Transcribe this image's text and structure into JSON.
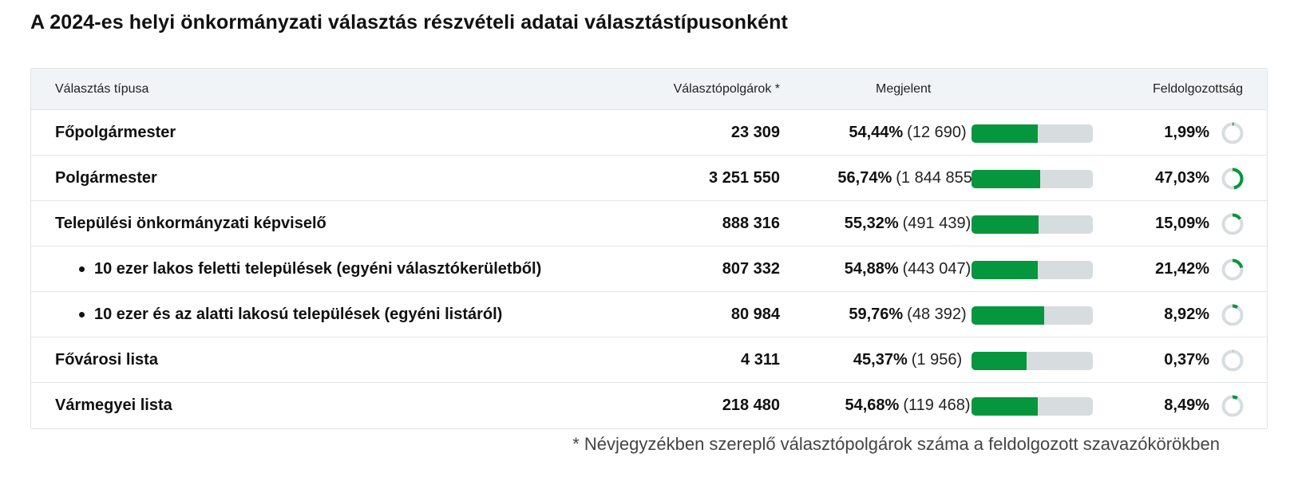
{
  "title": "A 2024-es helyi önkormányzati választás részvételi adatai választástípusonként",
  "headers": {
    "type": "Választás típusa",
    "voters": "Választópolgárok *",
    "present": "Megjelent",
    "processed": "Feldolgozottság"
  },
  "rows": [
    {
      "type": "Főpolgármester",
      "sub": false,
      "voters": "23 309",
      "present_pct": "54,44%",
      "present_count": "(12 690)",
      "present_value": 54.44,
      "processed": "1,99%",
      "processed_value": 1.99
    },
    {
      "type": "Polgármester",
      "sub": false,
      "voters": "3 251 550",
      "present_pct": "56,74%",
      "present_count": "(1 844 855)",
      "present_value": 56.74,
      "processed": "47,03%",
      "processed_value": 47.03
    },
    {
      "type": "Települési önkormányzati képviselő",
      "sub": false,
      "voters": "888 316",
      "present_pct": "55,32%",
      "present_count": "(491 439)",
      "present_value": 55.32,
      "processed": "15,09%",
      "processed_value": 15.09
    },
    {
      "type": "10 ezer lakos feletti települések (egyéni választókerületből)",
      "sub": true,
      "voters": "807 332",
      "present_pct": "54,88%",
      "present_count": "(443 047)",
      "present_value": 54.88,
      "processed": "21,42%",
      "processed_value": 21.42
    },
    {
      "type": "10 ezer és az alatti lakosú települések (egyéni listáról)",
      "sub": true,
      "voters": "80 984",
      "present_pct": "59,76%",
      "present_count": "(48 392)",
      "present_value": 59.76,
      "processed": "8,92%",
      "processed_value": 8.92
    },
    {
      "type": "Fővárosi lista",
      "sub": false,
      "voters": "4 311",
      "present_pct": "45,37%",
      "present_count": "(1 956)",
      "present_value": 45.37,
      "processed": "0,37%",
      "processed_value": 0.37
    },
    {
      "type": "Vármegyei lista",
      "sub": false,
      "voters": "218 480",
      "present_pct": "54,68%",
      "present_count": "(119 468)",
      "present_value": 54.68,
      "processed": "8,49%",
      "processed_value": 8.49
    }
  ],
  "footnote": "* Névjegyzékben szereplő választópolgárok száma a feldolgozott szavazókörökben",
  "colors": {
    "accent": "#05963e",
    "track": "#d7dcdf",
    "header_bg": "#f1f4f6"
  },
  "icons": {
    "bullet": "bullet-dot",
    "progress_ring": "ring-progress-icon"
  }
}
